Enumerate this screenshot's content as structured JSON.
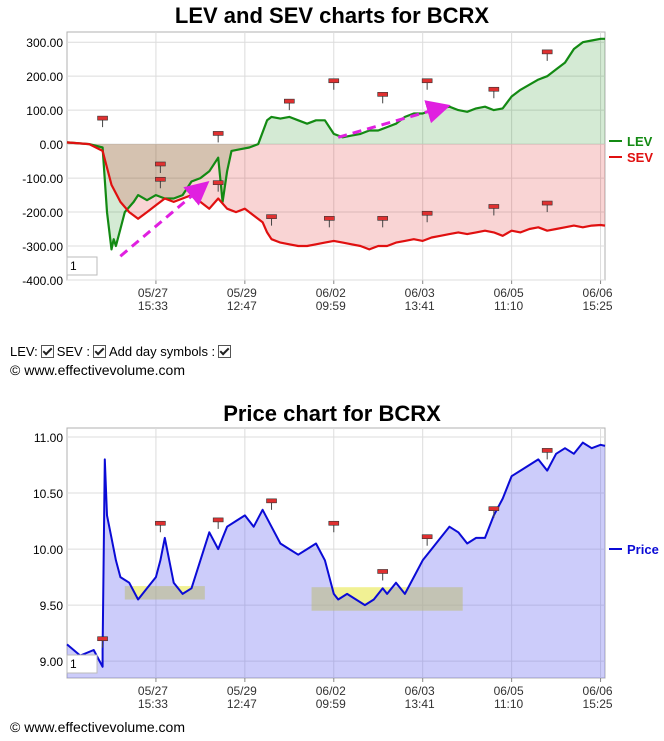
{
  "charts": {
    "lev_sev_title": "LEV and SEV charts for BCRX",
    "price_title": "Price chart for BCRX"
  },
  "controls": {
    "lev_label": "LEV:",
    "sev_label": "SEV :",
    "day_symbols_label": "Add day symbols :"
  },
  "copyright": "© www.effectivevolume.com",
  "zoom_box_value": "1",
  "chart_data": [
    {
      "type": "line",
      "title": "LEV and SEV charts for BCRX",
      "x_ticks": [
        {
          "date": "05/27",
          "time": "15:33"
        },
        {
          "date": "05/29",
          "time": "12:47"
        },
        {
          "date": "06/02",
          "time": "09:59"
        },
        {
          "date": "06/03",
          "time": "13:41"
        },
        {
          "date": "06/05",
          "time": "11:10"
        },
        {
          "date": "06/06",
          "time": "15:25"
        }
      ],
      "x_tick_pos": [
        2,
        4,
        6,
        8,
        10,
        12
      ],
      "xlim": [
        0,
        12.1
      ],
      "y_ticks": [
        "300.00",
        "200.00",
        "100.00",
        "0.00",
        "-100.00",
        "-200.00",
        "-300.00",
        "-400.00"
      ],
      "ylim": [
        -400,
        330
      ],
      "grid": true,
      "legend_position": "right",
      "series": [
        {
          "name": "LEV",
          "color": "#138a13",
          "x": [
            0,
            0.5,
            0.8,
            0.9,
            1.0,
            1.05,
            1.1,
            1.2,
            1.3,
            1.5,
            1.6,
            1.8,
            2.0,
            2.2,
            2.4,
            2.6,
            2.8,
            3.0,
            3.2,
            3.4,
            3.5,
            3.6,
            3.7,
            3.9,
            4.1,
            4.3,
            4.5,
            4.6,
            4.8,
            5.0,
            5.2,
            5.4,
            5.6,
            5.8,
            6.0,
            6.2,
            6.4,
            6.6,
            6.8,
            7.0,
            7.2,
            7.4,
            7.6,
            7.8,
            8.0,
            8.2,
            8.4,
            8.6,
            8.8,
            9.0,
            9.2,
            9.4,
            9.6,
            9.8,
            10.0,
            10.2,
            10.4,
            10.6,
            10.8,
            11.0,
            11.2,
            11.4,
            11.6,
            11.8,
            12.0,
            12.1
          ],
          "y": [
            5,
            0,
            -10,
            -200,
            -310,
            -280,
            -300,
            -250,
            -200,
            -170,
            -150,
            -165,
            -150,
            -160,
            -160,
            -150,
            -110,
            -100,
            -80,
            -40,
            -170,
            -80,
            -20,
            -15,
            -10,
            0,
            70,
            80,
            75,
            80,
            70,
            60,
            70,
            70,
            30,
            20,
            25,
            30,
            40,
            40,
            50,
            60,
            80,
            90,
            90,
            100,
            105,
            110,
            100,
            95,
            105,
            110,
            100,
            105,
            140,
            160,
            175,
            190,
            200,
            220,
            240,
            280,
            300,
            305,
            310,
            310
          ]
        },
        {
          "name": "SEV",
          "color": "#e01010",
          "x": [
            0,
            0.5,
            0.8,
            1.0,
            1.2,
            1.4,
            1.6,
            1.8,
            2.0,
            2.2,
            2.4,
            2.6,
            2.8,
            3.0,
            3.2,
            3.4,
            3.6,
            3.8,
            4.0,
            4.2,
            4.4,
            4.5,
            4.6,
            4.8,
            5.0,
            5.2,
            5.4,
            5.6,
            5.8,
            6.0,
            6.2,
            6.4,
            6.6,
            6.8,
            7.0,
            7.2,
            7.4,
            7.6,
            7.8,
            8.0,
            8.2,
            8.4,
            8.6,
            8.8,
            9.0,
            9.2,
            9.4,
            9.6,
            9.8,
            10.0,
            10.2,
            10.4,
            10.6,
            10.8,
            11.0,
            11.2,
            11.4,
            11.6,
            11.8,
            12.0,
            12.1
          ],
          "y": [
            5,
            0,
            -20,
            -120,
            -170,
            -200,
            -220,
            -200,
            -180,
            -160,
            -170,
            -160,
            -150,
            -170,
            -190,
            -160,
            -190,
            -200,
            -190,
            -210,
            -230,
            -260,
            -280,
            -290,
            -295,
            -300,
            -300,
            -295,
            -290,
            -285,
            -290,
            -295,
            -300,
            -310,
            -300,
            -300,
            -290,
            -285,
            -280,
            -285,
            -275,
            -270,
            -265,
            -260,
            -265,
            -260,
            -255,
            -260,
            -270,
            -255,
            -260,
            -250,
            -245,
            -255,
            -250,
            -245,
            -240,
            -245,
            -240,
            -238,
            -240
          ]
        }
      ],
      "annotation_arrows": [
        {
          "from": [
            1.2,
            -330
          ],
          "to": [
            3.1,
            -120
          ]
        },
        {
          "from": [
            6.1,
            20
          ],
          "to": [
            8.5,
            110
          ]
        }
      ],
      "day_markers": [
        {
          "x": 0.8,
          "y": 50
        },
        {
          "x": 2.1,
          "y": -85
        },
        {
          "x": 2.1,
          "y": -130
        },
        {
          "x": 3.4,
          "y": -140
        },
        {
          "x": 3.4,
          "y": 5
        },
        {
          "x": 4.6,
          "y": -240
        },
        {
          "x": 5.0,
          "y": 100
        },
        {
          "x": 5.9,
          "y": -245
        },
        {
          "x": 6.0,
          "y": 160
        },
        {
          "x": 7.1,
          "y": -245
        },
        {
          "x": 7.1,
          "y": 120
        },
        {
          "x": 8.1,
          "y": -230
        },
        {
          "x": 8.1,
          "y": 160
        },
        {
          "x": 9.6,
          "y": -210
        },
        {
          "x": 9.6,
          "y": 135
        },
        {
          "x": 10.8,
          "y": -200
        },
        {
          "x": 10.8,
          "y": 245
        }
      ]
    },
    {
      "type": "area",
      "title": "Price chart for BCRX",
      "x_ticks": [
        {
          "date": "05/27",
          "time": "15:33"
        },
        {
          "date": "05/29",
          "time": "12:47"
        },
        {
          "date": "06/02",
          "time": "09:59"
        },
        {
          "date": "06/03",
          "time": "13:41"
        },
        {
          "date": "06/05",
          "time": "11:10"
        },
        {
          "date": "06/06",
          "time": "15:25"
        }
      ],
      "x_tick_pos": [
        2,
        4,
        6,
        8,
        10,
        12
      ],
      "xlim": [
        0,
        12.1
      ],
      "y_ticks": [
        "11.00",
        "10.50",
        "10.00",
        "9.50",
        "9.00"
      ],
      "ylim": [
        8.85,
        11.08
      ],
      "grid": true,
      "legend_position": "right",
      "series": [
        {
          "name": "Price",
          "color": "#0b0bd6",
          "x": [
            0,
            0.3,
            0.6,
            0.8,
            0.8,
            0.85,
            0.9,
            1.0,
            1.1,
            1.2,
            1.4,
            1.6,
            1.8,
            2.0,
            2.1,
            2.2,
            2.4,
            2.6,
            2.8,
            3.0,
            3.2,
            3.4,
            3.5,
            3.6,
            3.8,
            4.0,
            4.2,
            4.4,
            4.6,
            4.8,
            5.0,
            5.2,
            5.4,
            5.6,
            5.8,
            6.0,
            6.1,
            6.3,
            6.5,
            6.7,
            6.9,
            7.1,
            7.2,
            7.4,
            7.6,
            7.8,
            8.0,
            8.2,
            8.4,
            8.6,
            8.8,
            9.0,
            9.2,
            9.4,
            9.6,
            9.8,
            10.0,
            10.2,
            10.4,
            10.6,
            10.8,
            11.0,
            11.2,
            11.4,
            11.6,
            11.8,
            12.0,
            12.1
          ],
          "y": [
            9.15,
            9.05,
            9.1,
            8.95,
            9.1,
            10.8,
            10.3,
            10.1,
            9.9,
            9.75,
            9.7,
            9.55,
            9.65,
            9.75,
            9.9,
            10.1,
            9.7,
            9.6,
            9.65,
            9.9,
            10.15,
            10.0,
            10.1,
            10.2,
            10.25,
            10.3,
            10.2,
            10.35,
            10.2,
            10.05,
            10.0,
            9.95,
            10.0,
            10.05,
            9.9,
            9.6,
            9.55,
            9.6,
            9.55,
            9.5,
            9.55,
            9.65,
            9.6,
            9.7,
            9.6,
            9.75,
            9.9,
            10.0,
            10.1,
            10.2,
            10.15,
            10.05,
            10.1,
            10.1,
            10.3,
            10.45,
            10.65,
            10.7,
            10.75,
            10.8,
            10.7,
            10.85,
            10.9,
            10.85,
            10.95,
            10.9,
            10.93,
            10.92
          ]
        }
      ],
      "highlight_boxes": [
        {
          "x": [
            1.3,
            3.1
          ],
          "y": [
            9.55,
            9.67
          ]
        },
        {
          "x": [
            5.5,
            8.9
          ],
          "y": [
            9.45,
            9.66
          ]
        }
      ],
      "day_markers": [
        {
          "x": 0.8,
          "y": 9.12
        },
        {
          "x": 2.1,
          "y": 10.15
        },
        {
          "x": 3.4,
          "y": 10.18
        },
        {
          "x": 4.6,
          "y": 10.35
        },
        {
          "x": 6.0,
          "y": 10.15
        },
        {
          "x": 7.1,
          "y": 9.72
        },
        {
          "x": 8.1,
          "y": 10.03
        },
        {
          "x": 9.6,
          "y": 10.28
        },
        {
          "x": 10.8,
          "y": 10.8
        }
      ]
    }
  ]
}
